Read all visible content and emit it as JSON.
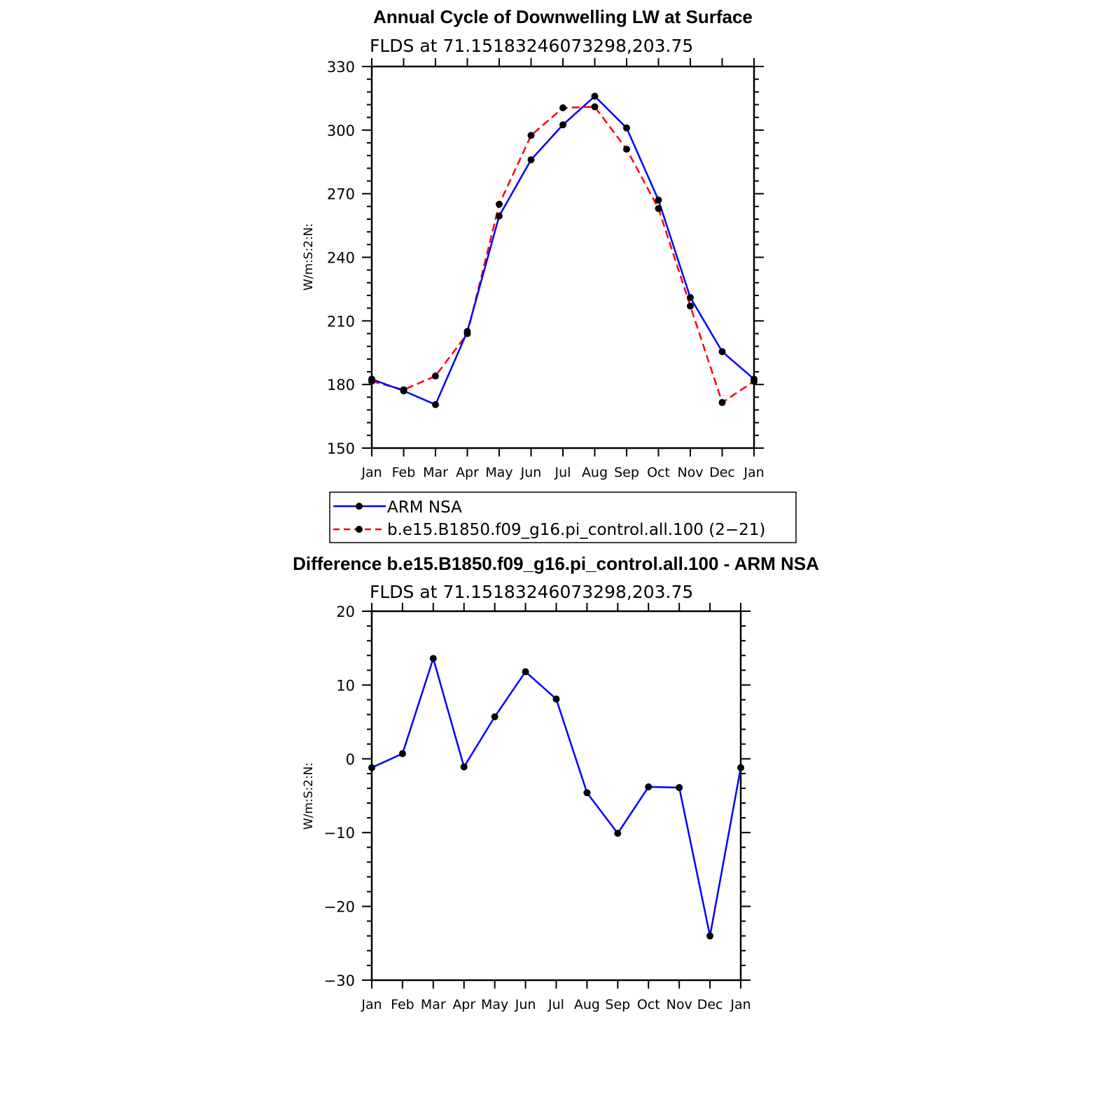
{
  "chart_data": [
    {
      "type": "line",
      "title": "Annual Cycle of Downwelling LW at Surface",
      "subtitle": "FLDS at 71.15183246073298,203.75",
      "ylabel": "W/m:S:2:N:",
      "xlabel": "",
      "categories": [
        "Jan",
        "Feb",
        "Mar",
        "Apr",
        "May",
        "Jun",
        "Jul",
        "Aug",
        "Sep",
        "Oct",
        "Nov",
        "Dec",
        "Jan"
      ],
      "ylim": [
        150,
        330
      ],
      "yticks": [
        150,
        180,
        210,
        240,
        270,
        300,
        330
      ],
      "series": [
        {
          "name": "ARM NSA",
          "color": "#0000ff",
          "dash": "solid",
          "values": [
            182.5,
            177.0,
            170.5,
            205.0,
            259.5,
            286.0,
            302.5,
            316.0,
            301.0,
            267.0,
            221.0,
            195.5,
            182.5
          ]
        },
        {
          "name": "b.e15.B1850.f09_g16.pi_control.all.100 (2−21)",
          "color": "#ff0000",
          "dash": "dashed",
          "values": [
            181.5,
            177.5,
            184.0,
            204.0,
            265.0,
            297.5,
            310.5,
            311.0,
            291.0,
            263.0,
            217.0,
            171.5,
            181.5
          ]
        }
      ],
      "legend": "below"
    },
    {
      "type": "line",
      "title": "Difference b.e15.B1850.f09_g16.pi_control.all.100 - ARM NSA",
      "subtitle": "FLDS at 71.15183246073298,203.75",
      "ylabel": "W/m:S:2:N:",
      "xlabel": "",
      "categories": [
        "Jan",
        "Feb",
        "Mar",
        "Apr",
        "May",
        "Jun",
        "Jul",
        "Aug",
        "Sep",
        "Oct",
        "Nov",
        "Dec",
        "Jan"
      ],
      "ylim": [
        -30,
        20
      ],
      "yticks": [
        -30,
        -20,
        -10,
        0,
        10,
        20
      ],
      "ytick_labels": [
        "−30",
        "−20",
        "−10",
        "0",
        "10",
        "20"
      ],
      "series": [
        {
          "color": "#0000ff",
          "dash": "solid",
          "values": [
            -1.2,
            0.7,
            13.6,
            -1.1,
            5.7,
            11.8,
            8.1,
            -4.6,
            -10.1,
            -3.8,
            -3.9,
            -24.0,
            -1.2
          ]
        }
      ]
    }
  ]
}
